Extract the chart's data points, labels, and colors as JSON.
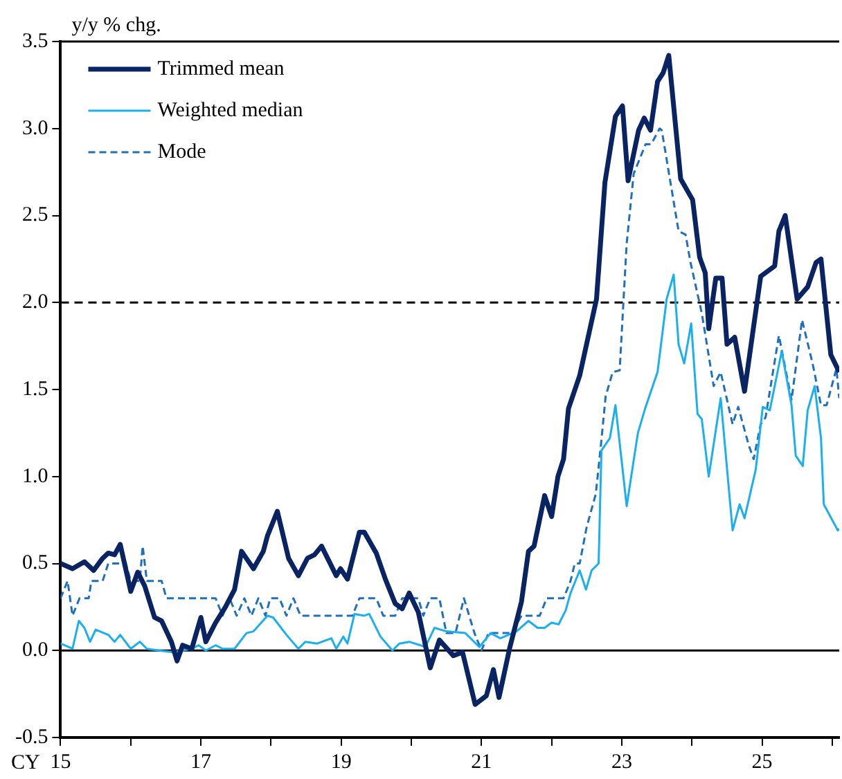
{
  "chart_data": {
    "type": "line",
    "ylabel": "y/y % chg.",
    "xlabel": "CY",
    "legend": "top left",
    "grid": false,
    "marker": "none",
    "xlim": [
      15,
      26.1
    ],
    "xticks": [
      15,
      {
        "value": 16,
        "label": null
      },
      17,
      {
        "value": 18,
        "label": null
      },
      19,
      {
        "value": 20,
        "label": null
      },
      21,
      {
        "value": 22,
        "label": null
      },
      23,
      {
        "value": 24,
        "label": null
      },
      25,
      {
        "value": 26,
        "label": null
      }
    ],
    "ylim": [
      -0.5,
      3.5
    ],
    "yticks": [
      -0.5,
      {
        "value": 0,
        "label": "0.0"
      },
      0.5,
      {
        "value": 1,
        "label": "1.0"
      },
      1.5,
      {
        "value": 2,
        "label": "2.0"
      },
      2.5,
      {
        "value": 3,
        "label": "3.0"
      },
      3.5
    ],
    "ref_lines": [
      {
        "axis": "y",
        "value": 0,
        "label": null,
        "color": "#000000",
        "line_style": "solid"
      },
      {
        "axis": "y",
        "value": 2,
        "label": null,
        "color": "#000000",
        "line_style": "dashed"
      }
    ],
    "series": [
      {
        "name": "Trimmed mean",
        "color": "#0a2463",
        "line_style": "solid",
        "x": [
          15.0,
          15.17,
          15.34,
          15.47,
          15.6,
          15.68,
          15.77,
          15.85,
          16.0,
          16.1,
          16.2,
          16.34,
          16.44,
          16.58,
          16.66,
          16.74,
          16.87,
          17.0,
          17.07,
          17.21,
          17.35,
          17.48,
          17.58,
          17.75,
          17.89,
          17.95,
          18.09,
          18.25,
          18.39,
          18.52,
          18.62,
          18.72,
          18.93,
          18.99,
          19.09,
          19.26,
          19.33,
          19.5,
          19.63,
          19.77,
          19.87,
          19.97,
          20.1,
          20.27,
          20.4,
          20.6,
          20.73,
          20.91,
          21.07,
          21.17,
          21.25,
          21.4,
          21.57,
          21.67,
          21.75,
          21.9,
          22.0,
          22.09,
          22.17,
          22.24,
          22.4,
          22.64,
          22.76,
          22.91,
          23.01,
          23.09,
          23.24,
          23.32,
          23.41,
          23.51,
          23.59,
          23.67,
          23.84,
          24.01,
          24.11,
          24.19,
          24.24,
          24.34,
          24.43,
          24.5,
          24.61,
          24.75,
          24.98,
          25.18,
          25.24,
          25.33,
          25.5,
          25.65,
          25.77,
          25.84,
          25.98,
          26.1
        ],
        "values": [
          0.5,
          0.47,
          0.51,
          0.46,
          0.53,
          0.56,
          0.55,
          0.61,
          0.34,
          0.45,
          0.37,
          0.19,
          0.17,
          0.05,
          -0.06,
          0.03,
          0.01,
          0.19,
          0.05,
          0.16,
          0.25,
          0.35,
          0.57,
          0.47,
          0.57,
          0.66,
          0.8,
          0.53,
          0.43,
          0.53,
          0.55,
          0.6,
          0.43,
          0.47,
          0.41,
          0.68,
          0.68,
          0.56,
          0.41,
          0.27,
          0.24,
          0.33,
          0.22,
          -0.1,
          0.06,
          -0.03,
          -0.01,
          -0.31,
          -0.26,
          -0.11,
          -0.27,
          0.01,
          0.28,
          0.57,
          0.6,
          0.89,
          0.77,
          1.0,
          1.1,
          1.39,
          1.58,
          2.02,
          2.69,
          3.07,
          3.13,
          2.7,
          2.99,
          3.06,
          2.99,
          3.27,
          3.32,
          3.42,
          2.71,
          2.59,
          2.26,
          2.17,
          1.85,
          2.14,
          2.14,
          1.76,
          1.8,
          1.49,
          2.15,
          2.21,
          2.41,
          2.5,
          2.02,
          2.09,
          2.23,
          2.25,
          1.7,
          1.6
        ]
      },
      {
        "name": "Weighted median",
        "color": "#1ab0ef",
        "line_style": "solid",
        "x": [
          15.0,
          15.17,
          15.26,
          15.34,
          15.42,
          15.5,
          15.68,
          15.77,
          15.85,
          16.0,
          16.13,
          16.23,
          16.4,
          16.6,
          16.87,
          16.97,
          17.07,
          17.21,
          17.31,
          17.48,
          17.65,
          17.75,
          17.95,
          18.03,
          18.22,
          18.39,
          18.49,
          18.66,
          18.86,
          18.93,
          19.03,
          19.09,
          19.19,
          19.33,
          19.4,
          19.56,
          19.73,
          19.83,
          19.97,
          20.13,
          20.2,
          20.33,
          20.5,
          20.77,
          20.97,
          21.13,
          21.27,
          21.5,
          21.67,
          21.8,
          21.9,
          22.0,
          22.1,
          22.2,
          22.27,
          22.4,
          22.49,
          22.57,
          22.67,
          22.71,
          22.83,
          22.91,
          23.07,
          23.23,
          23.34,
          23.51,
          23.64,
          23.74,
          23.81,
          23.89,
          23.99,
          24.08,
          24.14,
          24.24,
          24.41,
          24.58,
          24.68,
          24.75,
          24.91,
          25.01,
          25.11,
          25.28,
          25.42,
          25.48,
          25.58,
          25.65,
          25.75,
          25.84,
          25.88,
          26.08,
          26.1
        ],
        "values": [
          0.04,
          0.01,
          0.17,
          0.13,
          0.05,
          0.12,
          0.09,
          0.05,
          0.09,
          0.01,
          0.05,
          0.01,
          0.0,
          -0.01,
          0.01,
          0.03,
          0.0,
          0.03,
          0.01,
          0.01,
          0.1,
          0.11,
          0.2,
          0.19,
          0.09,
          0.01,
          0.05,
          0.04,
          0.07,
          0.01,
          0.08,
          0.04,
          0.21,
          0.2,
          0.21,
          0.08,
          0.0,
          0.04,
          0.05,
          0.03,
          0.02,
          0.13,
          0.11,
          0.1,
          0.02,
          0.1,
          0.07,
          0.11,
          0.17,
          0.13,
          0.13,
          0.16,
          0.15,
          0.23,
          0.33,
          0.46,
          0.35,
          0.46,
          0.5,
          1.15,
          1.22,
          1.41,
          0.83,
          1.25,
          1.4,
          1.6,
          2.02,
          2.16,
          1.76,
          1.65,
          1.88,
          1.36,
          1.33,
          1.0,
          1.45,
          0.69,
          0.84,
          0.76,
          1.04,
          1.4,
          1.38,
          1.72,
          1.41,
          1.12,
          1.06,
          1.38,
          1.52,
          1.22,
          0.84,
          0.69,
          0.7
        ]
      },
      {
        "name": "Mode",
        "color": "#1f6fbf",
        "line_style": "dashed",
        "x": [
          15.0,
          15.1,
          15.17,
          15.27,
          15.4,
          15.44,
          15.6,
          15.68,
          15.93,
          16.0,
          16.13,
          16.17,
          16.23,
          16.44,
          16.51,
          17.21,
          17.31,
          17.41,
          17.51,
          17.62,
          17.72,
          17.82,
          17.92,
          17.99,
          18.12,
          18.22,
          18.32,
          18.42,
          19.16,
          19.26,
          19.5,
          19.6,
          19.77,
          19.87,
          19.97,
          20.1,
          20.17,
          20.27,
          20.4,
          20.5,
          20.63,
          20.75,
          20.9,
          21.0,
          21.1,
          21.43,
          21.57,
          21.83,
          21.93,
          22.17,
          22.27,
          22.33,
          22.4,
          22.5,
          22.63,
          22.7,
          22.77,
          22.87,
          22.97,
          23.07,
          23.17,
          23.34,
          23.42,
          23.54,
          23.57,
          23.81,
          23.91,
          23.98,
          24.14,
          24.31,
          24.41,
          24.58,
          24.66,
          24.81,
          24.88,
          24.98,
          25.05,
          25.24,
          25.42,
          25.57,
          25.72,
          25.84,
          25.92,
          26.06,
          26.1
        ],
        "values": [
          0.3,
          0.4,
          0.2,
          0.3,
          0.3,
          0.4,
          0.4,
          0.5,
          0.5,
          0.4,
          0.4,
          0.6,
          0.4,
          0.4,
          0.3,
          0.3,
          0.2,
          0.3,
          0.2,
          0.3,
          0.2,
          0.3,
          0.2,
          0.3,
          0.3,
          0.2,
          0.3,
          0.2,
          0.2,
          0.3,
          0.3,
          0.2,
          0.2,
          0.3,
          0.3,
          0.3,
          0.2,
          0.3,
          0.3,
          0.1,
          0.1,
          0.3,
          0.1,
          0.0,
          0.1,
          0.1,
          0.2,
          0.2,
          0.3,
          0.3,
          0.4,
          0.5,
          0.5,
          0.71,
          0.9,
          1.17,
          1.46,
          1.6,
          1.61,
          2.34,
          2.74,
          2.91,
          2.91,
          3.0,
          2.99,
          2.41,
          2.39,
          2.23,
          1.94,
          1.52,
          1.6,
          1.3,
          1.4,
          1.18,
          1.1,
          1.3,
          1.34,
          1.81,
          1.44,
          1.9,
          1.65,
          1.41,
          1.41,
          1.62,
          1.45
        ]
      }
    ]
  }
}
